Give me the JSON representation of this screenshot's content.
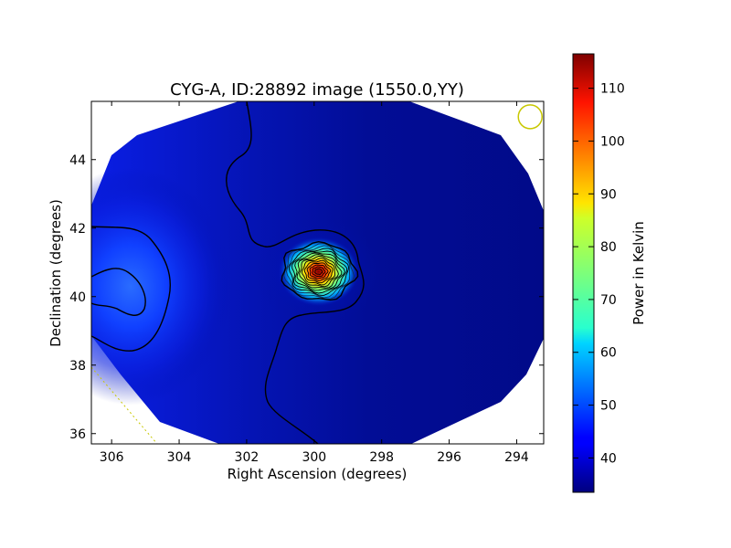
{
  "chart_data": {
    "type": "heatmap",
    "title": "CYG-A, ID:28892 image (1550.0,YY)",
    "xlabel": "Right Ascension (degrees)",
    "ylabel": "Declination (degrees)",
    "xlim": [
      306.6,
      293.2
    ],
    "ylim": [
      35.7,
      45.7
    ],
    "x_axis_reversed": true,
    "x_ticks": [
      306,
      304,
      302,
      300,
      298,
      296,
      294
    ],
    "y_ticks": [
      36,
      38,
      40,
      42,
      44
    ],
    "colorbar": {
      "label": "Power in Kelvin",
      "colormap": "jet",
      "range": [
        33.5,
        116.5
      ],
      "ticks": [
        40,
        50,
        60,
        70,
        80,
        90,
        100,
        110
      ]
    },
    "background_level_kelvin": 36,
    "sources": [
      {
        "name": "CYG-A",
        "ra": 299.87,
        "dec": 40.73,
        "peak_kelvin": 116,
        "contour_levels": 14
      },
      {
        "ra": 305.6,
        "dec": 40.3,
        "peak_kelvin": 47
      }
    ],
    "beam_marker": {
      "ra": 293.6,
      "dec": 45.25,
      "color": "#c8c800"
    },
    "grid": false,
    "legend": "none"
  },
  "colors": {
    "contour": "#000000",
    "outside": "#ffffff",
    "beam": "#c8c800",
    "guide_line": "#c8c800"
  }
}
